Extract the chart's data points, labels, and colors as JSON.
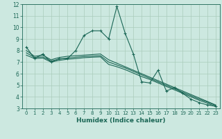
{
  "xlabel": "Humidex (Indice chaleur)",
  "ylabel": "",
  "bg_color": "#cce8e0",
  "line_color": "#1a6655",
  "grid_color": "#aaccbb",
  "xlim": [
    -0.5,
    23.5
  ],
  "ylim": [
    3,
    12
  ],
  "yticks": [
    3,
    4,
    5,
    6,
    7,
    8,
    9,
    10,
    11,
    12
  ],
  "xticks": [
    0,
    1,
    2,
    3,
    4,
    5,
    6,
    7,
    8,
    9,
    10,
    11,
    12,
    13,
    14,
    15,
    16,
    17,
    18,
    19,
    20,
    21,
    22,
    23
  ],
  "lines": [
    {
      "x": [
        0,
        1,
        2,
        3,
        4,
        5,
        6,
        7,
        8,
        9,
        10,
        11,
        12,
        13,
        14,
        15,
        16,
        17,
        18,
        19,
        20,
        21,
        22,
        23
      ],
      "y": [
        8.3,
        7.3,
        7.7,
        7.0,
        7.3,
        7.3,
        8.0,
        9.3,
        9.7,
        9.7,
        9.0,
        11.8,
        9.5,
        7.7,
        5.3,
        5.2,
        6.3,
        4.5,
        4.8,
        4.3,
        3.8,
        3.5,
        3.3,
        3.2
      ],
      "marker": "+"
    },
    {
      "x": [
        0,
        1,
        2,
        3,
        4,
        5,
        6,
        7,
        8,
        9,
        10,
        11,
        12,
        13,
        14,
        15,
        16,
        17,
        18,
        19,
        20,
        21,
        22,
        23
      ],
      "y": [
        8.0,
        7.5,
        7.6,
        7.2,
        7.4,
        7.5,
        7.55,
        7.6,
        7.65,
        7.7,
        7.2,
        6.9,
        6.6,
        6.3,
        6.0,
        5.7,
        5.4,
        5.1,
        4.8,
        4.5,
        4.2,
        3.9,
        3.6,
        3.3
      ],
      "marker": null
    },
    {
      "x": [
        0,
        1,
        2,
        3,
        4,
        5,
        6,
        7,
        8,
        9,
        10,
        11,
        12,
        13,
        14,
        15,
        16,
        17,
        18,
        19,
        20,
        21,
        22,
        23
      ],
      "y": [
        7.8,
        7.4,
        7.45,
        7.1,
        7.25,
        7.35,
        7.42,
        7.48,
        7.52,
        7.55,
        7.0,
        6.75,
        6.5,
        6.2,
        5.9,
        5.6,
        5.3,
        5.0,
        4.7,
        4.4,
        4.1,
        3.8,
        3.55,
        3.25
      ],
      "marker": null
    },
    {
      "x": [
        0,
        1,
        2,
        3,
        4,
        5,
        6,
        7,
        8,
        9,
        10,
        11,
        12,
        13,
        14,
        15,
        16,
        17,
        18,
        19,
        20,
        21,
        22,
        23
      ],
      "y": [
        7.6,
        7.3,
        7.35,
        7.0,
        7.15,
        7.25,
        7.3,
        7.38,
        7.42,
        7.45,
        6.8,
        6.6,
        6.35,
        6.05,
        5.75,
        5.5,
        5.2,
        4.9,
        4.6,
        4.3,
        4.0,
        3.7,
        3.45,
        3.15
      ],
      "marker": null
    }
  ]
}
